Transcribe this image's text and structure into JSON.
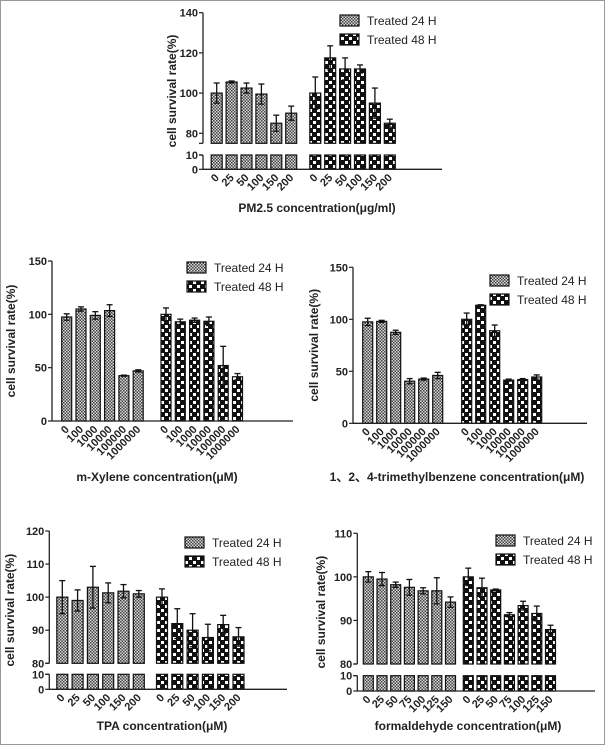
{
  "chart_data": [
    {
      "type": "bar",
      "title": "",
      "xlabel": "PM2.5 concentration(μg/ml)",
      "ylabel": "cell survival rate(%)",
      "axis_break": {
        "lower": [
          0,
          10
        ],
        "upper": [
          75,
          140
        ]
      },
      "yticks": [
        0,
        10,
        80,
        100,
        120,
        140
      ],
      "legend_placement": "top-right",
      "categories": [
        "0",
        "25",
        "50",
        "100",
        "150",
        "200"
      ],
      "series": [
        {
          "name": "Treated 24 H",
          "values": [
            100,
            105.5,
            102.5,
            99.5,
            85,
            90
          ],
          "errors": [
            5,
            0.5,
            2.5,
            5,
            4,
            3.5
          ]
        },
        {
          "name": "Treated 48 H",
          "values": [
            100,
            117.5,
            112,
            112,
            95,
            85
          ],
          "errors": [
            8,
            6,
            5.5,
            2,
            7.5,
            2
          ]
        }
      ]
    },
    {
      "type": "bar",
      "title": "",
      "xlabel": "m-Xylene concentration(μM)",
      "ylabel": "cell survival rate(%)",
      "ylim": [
        0,
        150
      ],
      "yticks": [
        0,
        50,
        100,
        150
      ],
      "legend_placement": "top-right",
      "categories": [
        "0",
        "100",
        "1000",
        "10000",
        "100000",
        "1000000"
      ],
      "series": [
        {
          "name": "Treated 24 H",
          "values": [
            97.5,
            105,
            99,
            103.5,
            42.5,
            47
          ],
          "errors": [
            3,
            2,
            3.5,
            5.5,
            0.5,
            1
          ]
        },
        {
          "name": "Treated 48 H",
          "values": [
            100,
            93,
            94.5,
            93.5,
            52,
            41.5
          ],
          "errors": [
            6,
            2.5,
            2,
            4,
            18,
            3
          ]
        }
      ]
    },
    {
      "type": "bar",
      "title": "",
      "xlabel": "1、2、4-trimethylbenzene concentration(μM)",
      "ylabel": "cell survival rate(%)",
      "ylim": [
        0,
        150
      ],
      "yticks": [
        0,
        50,
        100,
        150
      ],
      "legend_placement": "top-right",
      "categories": [
        "0",
        "100",
        "1000",
        "10000",
        "100000",
        "1000000"
      ],
      "series": [
        {
          "name": "Treated 24 H",
          "values": [
            97.5,
            98,
            87.5,
            40.5,
            42.5,
            46
          ],
          "errors": [
            3.5,
            1,
            2,
            2.5,
            1,
            3
          ]
        },
        {
          "name": "Treated 48 H",
          "values": [
            100,
            113.5,
            89,
            41.5,
            42,
            44.5
          ],
          "errors": [
            6,
            0.5,
            5.5,
            1,
            1,
            2
          ]
        }
      ]
    },
    {
      "type": "bar",
      "title": "",
      "xlabel": "TPA concentration(μM)",
      "ylabel": "cell survival rate(%)",
      "axis_break": {
        "lower": [
          0,
          10
        ],
        "upper": [
          80,
          120
        ]
      },
      "yticks": [
        0,
        10,
        80,
        90,
        100,
        110,
        120
      ],
      "legend_placement": "top-right",
      "categories": [
        "0",
        "25",
        "50",
        "100",
        "150",
        "200"
      ],
      "series": [
        {
          "name": "Treated 24 H",
          "values": [
            100,
            99,
            103,
            101.3,
            101.8,
            101
          ],
          "errors": [
            5,
            3.2,
            6.3,
            3,
            2,
            1
          ]
        },
        {
          "name": "Treated 48 H",
          "values": [
            100,
            92,
            90,
            87.8,
            91.7,
            88
          ],
          "errors": [
            2.5,
            4.5,
            5,
            4,
            2.8,
            2.8
          ]
        }
      ]
    },
    {
      "type": "bar",
      "title": "",
      "xlabel": "formaldehyde concentration(μM)",
      "ylabel": "cell survival rate(%)",
      "axis_break": {
        "lower": [
          0,
          10
        ],
        "upper": [
          80,
          110
        ]
      },
      "yticks": [
        0,
        10,
        80,
        90,
        100,
        110
      ],
      "legend_placement": "top-right",
      "categories": [
        "0",
        "25",
        "50",
        "75",
        "100",
        "125",
        "150"
      ],
      "series": [
        {
          "name": "Treated 24 H",
          "values": [
            100,
            99.5,
            98.2,
            97.6,
            96.8,
            96.8,
            94.2
          ],
          "errors": [
            1.2,
            1.5,
            0.6,
            1.8,
            0.7,
            3,
            1.2
          ]
        },
        {
          "name": "Treated 48 H",
          "values": [
            100,
            97.5,
            97,
            91.3,
            93.4,
            91.6,
            87.9
          ],
          "errors": [
            2,
            2.2,
            0.2,
            0.5,
            1,
            1.7,
            1
          ]
        }
      ]
    }
  ]
}
